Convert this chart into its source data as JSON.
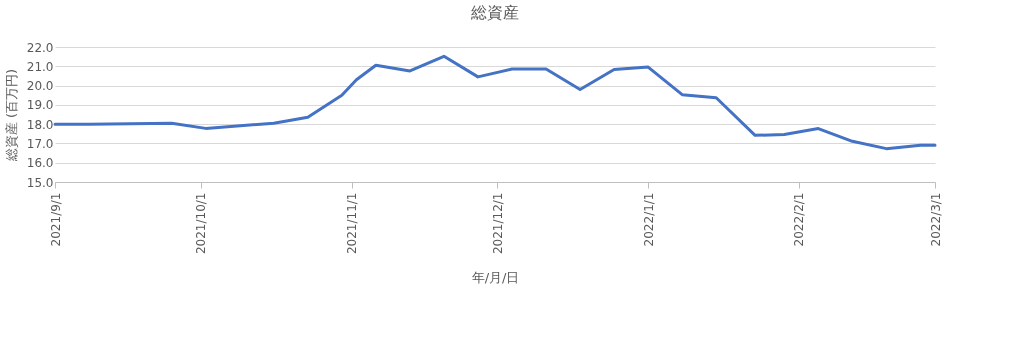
{
  "chart_data": {
    "type": "line",
    "title": "総資産",
    "xlabel": "年/月/日",
    "ylabel": "総資産 (百万円)",
    "x": [
      "2021-09-01",
      "2021-09-08",
      "2021-09-25",
      "2021-10-02",
      "2021-10-16",
      "2021-10-23",
      "2021-10-30",
      "2021-11-02",
      "2021-11-06",
      "2021-11-13",
      "2021-11-20",
      "2021-11-27",
      "2021-12-04",
      "2021-12-11",
      "2021-12-18",
      "2021-12-25",
      "2022-01-01",
      "2022-01-08",
      "2022-01-15",
      "2022-01-23",
      "2022-01-29",
      "2022-02-05",
      "2022-02-12",
      "2022-02-19",
      "2022-02-26",
      "2022-03-01"
    ],
    "series": [
      {
        "color": "#4472c4",
        "values": [
          18.0,
          18.0,
          18.05,
          17.78,
          18.05,
          18.36,
          19.5,
          20.3,
          21.05,
          20.76,
          21.52,
          20.45,
          20.86,
          20.86,
          19.8,
          20.83,
          20.96,
          19.53,
          19.37,
          17.42,
          17.46,
          17.77,
          17.11,
          16.73,
          16.9,
          16.9
        ]
      }
    ],
    "xlim": [
      "2021-09-01",
      "2022-03-01"
    ],
    "xticks": [
      {
        "value": "2021-09-01",
        "label": "2021/9/1"
      },
      {
        "value": "2021-10-01",
        "label": "2021/10/1"
      },
      {
        "value": "2021-11-01",
        "label": "2021/11/1"
      },
      {
        "value": "2021-12-01",
        "label": "2021/12/1"
      },
      {
        "value": "2022-01-01",
        "label": "2022/1/1"
      },
      {
        "value": "2022-02-01",
        "label": "2022/2/1"
      },
      {
        "value": "2022-03-01",
        "label": "2022/3/1"
      }
    ],
    "ylim": [
      15,
      22
    ],
    "yticks": [
      {
        "value": 15,
        "label": "15.0"
      },
      {
        "value": 16,
        "label": "16.0"
      },
      {
        "value": 17,
        "label": "17.0"
      },
      {
        "value": 18,
        "label": "18.0"
      },
      {
        "value": 19,
        "label": "19.0"
      },
      {
        "value": 20,
        "label": "20.0"
      },
      {
        "value": 21,
        "label": "21.0"
      },
      {
        "value": 22,
        "label": "22.0"
      }
    ],
    "grid": "y",
    "marker": "none",
    "line_style": "solid"
  }
}
